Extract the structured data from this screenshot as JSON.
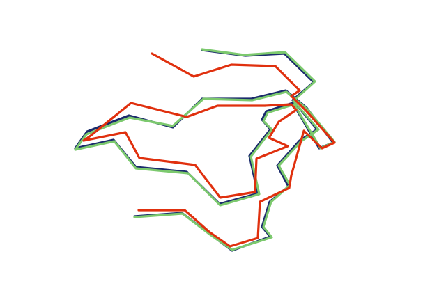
{
  "scene": {
    "background": "#ffffff",
    "description_visible_text": ""
  },
  "traces": [
    {
      "name": "navy",
      "color": "#1a2a6c"
    },
    {
      "name": "green",
      "color": "#7cc96e"
    },
    {
      "name": "red",
      "color": "#e0300e"
    }
  ]
}
